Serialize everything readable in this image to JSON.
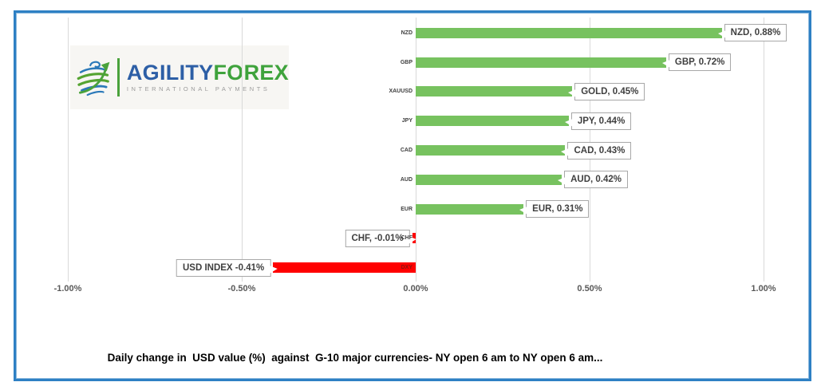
{
  "frame": {
    "border_color": "#2e80c4"
  },
  "logo": {
    "brand_part1": "AGILITY",
    "brand_part2": "FOREX",
    "tagline": "INTERNATIONAL PAYMENTS",
    "colors": {
      "brand_part1": "#2d5fa6",
      "brand_part2": "#3fa33c",
      "tagline": "#9b9b9b",
      "divider": "#4aa23b",
      "globe_blue": "#2b79b9",
      "globe_green": "#55a431"
    }
  },
  "chart_data": {
    "type": "bar",
    "orientation": "horizontal",
    "title": "Daily change in  USD value (%)  against  G-10 major currencies- NY open 6 am to NY open 6 am...",
    "categories": [
      "NZD",
      "GBP",
      "XAUUSD",
      "JPY",
      "CAD",
      "AUD",
      "EUR",
      "CHF",
      "DXY"
    ],
    "values": [
      0.88,
      0.72,
      0.45,
      0.44,
      0.43,
      0.42,
      0.31,
      -0.01,
      -0.41
    ],
    "data_labels": [
      "NZD, 0.88%",
      "GBP, 0.72%",
      "GOLD, 0.45%",
      "JPY, 0.44%",
      "CAD, 0.43%",
      "AUD, 0.42%",
      "EUR, 0.31%",
      "CHF, -0.01%",
      "USD INDEX -0.41%"
    ],
    "x_ticks": [
      "-1.00%",
      "-0.50%",
      "0.00%",
      "0.50%",
      "1.00%"
    ],
    "x_tick_values": [
      -1,
      -0.5,
      0,
      0.5,
      1
    ],
    "xlim": [
      -1,
      1
    ],
    "grid": true,
    "legend": "none",
    "colors": {
      "bar_positive": "#77c25f",
      "bar_negative": "#ff0000",
      "grid": "#d9d9d9",
      "axis_text": "#595959",
      "category_text": "#3f3f3f",
      "negative_category_text": "#8b1510",
      "callout_text": "#3f3f3f",
      "callout_border": "#a8a8a8"
    }
  }
}
